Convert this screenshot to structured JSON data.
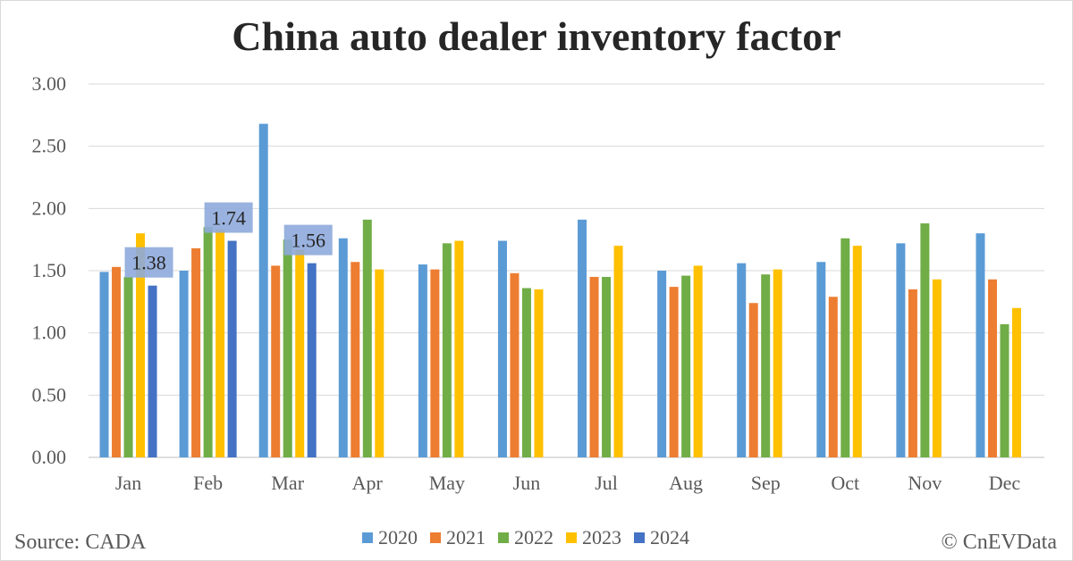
{
  "chart_data": {
    "type": "bar",
    "title": "China auto dealer inventory factor",
    "categories": [
      "Jan",
      "Feb",
      "Mar",
      "Apr",
      "May",
      "Jun",
      "Jul",
      "Aug",
      "Sep",
      "Oct",
      "Nov",
      "Dec"
    ],
    "ylim": [
      0,
      3
    ],
    "yticks": [
      "0.00",
      "0.50",
      "1.00",
      "1.50",
      "2.00",
      "2.50",
      "3.00"
    ],
    "grid": true,
    "legend_position": "bottom",
    "series": [
      {
        "name": "2020",
        "color": "#5b9bd5",
        "values": [
          1.49,
          1.5,
          2.68,
          1.76,
          1.55,
          1.74,
          1.91,
          1.5,
          1.56,
          1.57,
          1.72,
          1.8
        ]
      },
      {
        "name": "2021",
        "color": "#ed7d31",
        "values": [
          1.53,
          1.68,
          1.54,
          1.57,
          1.51,
          1.48,
          1.45,
          1.37,
          1.24,
          1.29,
          1.35,
          1.43
        ]
      },
      {
        "name": "2022",
        "color": "#70ad47",
        "values": [
          1.45,
          1.85,
          1.75,
          1.91,
          1.72,
          1.36,
          1.45,
          1.46,
          1.47,
          1.76,
          1.88,
          1.07
        ]
      },
      {
        "name": "2023",
        "color": "#ffc000",
        "values": [
          1.8,
          1.83,
          1.67,
          1.51,
          1.74,
          1.35,
          1.7,
          1.54,
          1.51,
          1.7,
          1.43,
          1.2
        ]
      },
      {
        "name": "2024",
        "color": "#4472c4",
        "values": [
          1.38,
          1.74,
          1.56,
          null,
          null,
          null,
          null,
          null,
          null,
          null,
          null,
          null
        ]
      }
    ],
    "data_labels": [
      {
        "series": "2024",
        "category": "Jan",
        "text": "1.38"
      },
      {
        "series": "2024",
        "category": "Feb",
        "text": "1.74"
      },
      {
        "series": "2024",
        "category": "Mar",
        "text": "1.56"
      }
    ]
  },
  "footer": {
    "source": "Source: CADA",
    "credit": "© CnEVData"
  }
}
